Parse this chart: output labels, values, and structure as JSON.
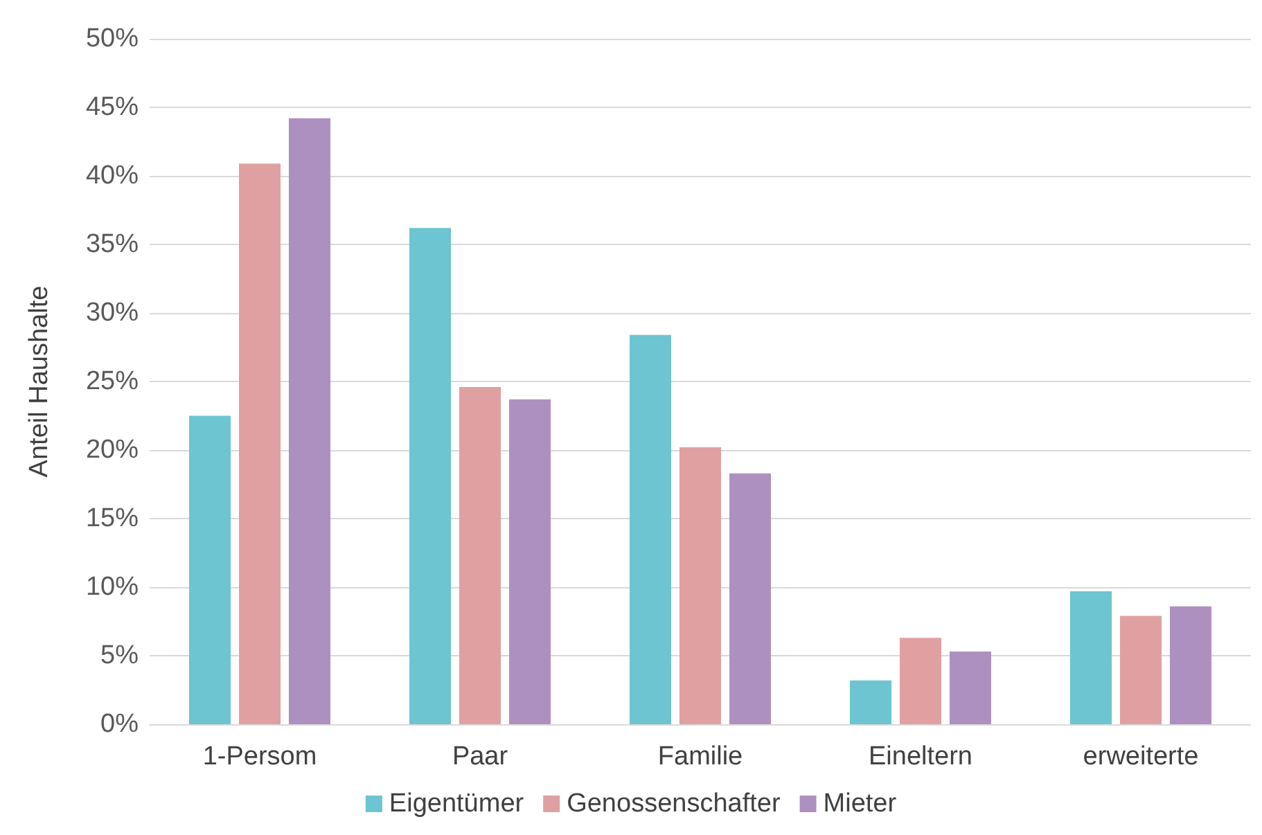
{
  "chart_data": {
    "type": "bar",
    "ylabel": "Anteil Haushalte",
    "categories": [
      "1-Persom",
      "Paar",
      "Familie",
      "Eineltern",
      "erweiterte"
    ],
    "series": [
      {
        "name": "Eigentümer",
        "color": "#6cc5d0",
        "values": [
          22.5,
          36.2,
          28.4,
          3.2,
          9.7
        ]
      },
      {
        "name": "Genossenschafter",
        "color": "#e0a0a2",
        "values": [
          40.9,
          24.6,
          20.2,
          6.3,
          7.9
        ]
      },
      {
        "name": "Mieter",
        "color": "#ae90c0",
        "values": [
          44.2,
          23.7,
          18.3,
          5.3,
          8.6
        ]
      }
    ],
    "ylim": [
      0,
      50
    ],
    "yticks": [
      {
        "value": 0,
        "label": "0%"
      },
      {
        "value": 5,
        "label": "5%"
      },
      {
        "value": 10,
        "label": "10%"
      },
      {
        "value": 15,
        "label": "15%"
      },
      {
        "value": 20,
        "label": "20%"
      },
      {
        "value": 25,
        "label": "25%"
      },
      {
        "value": 30,
        "label": "30%"
      },
      {
        "value": 35,
        "label": "35%"
      },
      {
        "value": 40,
        "label": "40%"
      },
      {
        "value": 45,
        "label": "45%"
      },
      {
        "value": 50,
        "label": "50%"
      }
    ],
    "grid": "y",
    "legend": "bottom"
  }
}
